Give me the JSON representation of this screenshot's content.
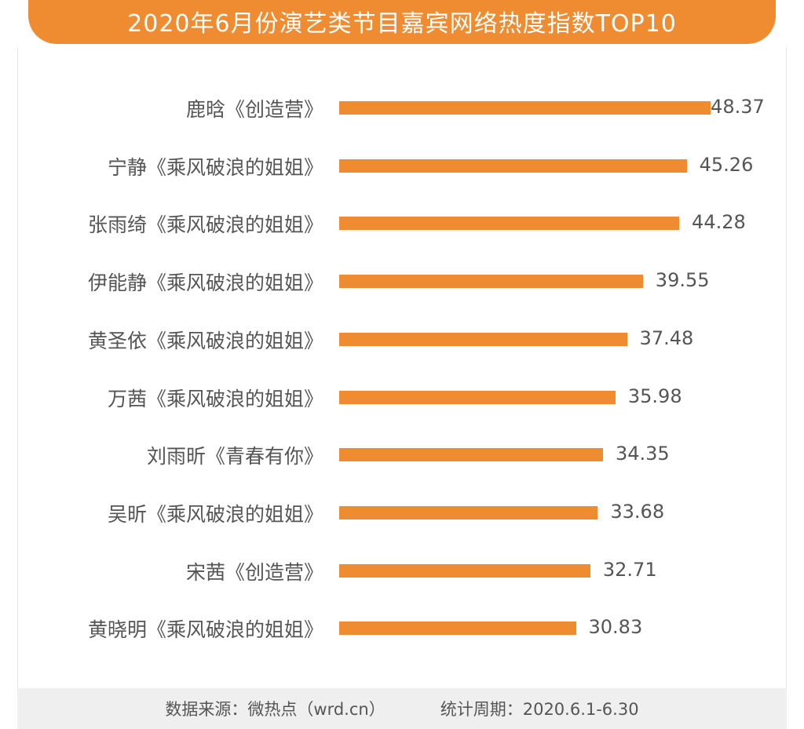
{
  "title": "2020年6月份演艺类节目嘉宾网络热度指数TOP10",
  "colors": {
    "accent": "#ef8c31",
    "text": "#555555",
    "footer_bg": "#efefef"
  },
  "footer": {
    "source": "数据来源：微热点（wrd.cn）",
    "period": "统计周期：2020.6.1-6.30"
  },
  "rows": [
    {
      "label": "鹿晗《创造营》",
      "value": "48.37"
    },
    {
      "label": "宁静《乘风破浪的姐姐》",
      "value": "45.26"
    },
    {
      "label": "张雨绮《乘风破浪的姐姐》",
      "value": "44.28"
    },
    {
      "label": "伊能静《乘风破浪的姐姐》",
      "value": "39.55"
    },
    {
      "label": "黄圣依《乘风破浪的姐姐》",
      "value": "37.48"
    },
    {
      "label": "万茜《乘风破浪的姐姐》",
      "value": "35.98"
    },
    {
      "label": "刘雨昕《青春有你》",
      "value": "34.35"
    },
    {
      "label": "吴昕《乘风破浪的姐姐》",
      "value": "33.68"
    },
    {
      "label": "宋茜《创造营》",
      "value": "32.71"
    },
    {
      "label": "黄晓明《乘风破浪的姐姐》",
      "value": "30.83"
    }
  ],
  "chart_data": {
    "type": "bar",
    "orientation": "horizontal",
    "title": "2020年6月份演艺类节目嘉宾网络热度指数TOP10",
    "categories": [
      "鹿晗《创造营》",
      "宁静《乘风破浪的姐姐》",
      "张雨绮《乘风破浪的姐姐》",
      "伊能静《乘风破浪的姐姐》",
      "黄圣依《乘风破浪的姐姐》",
      "万茜《乘风破浪的姐姐》",
      "刘雨昕《青春有你》",
      "吴昕《乘风破浪的姐姐》",
      "宋茜《创造营》",
      "黄晓明《乘风破浪的姐姐》"
    ],
    "values": [
      48.37,
      45.26,
      44.28,
      39.55,
      37.48,
      35.98,
      34.35,
      33.68,
      32.71,
      30.83
    ],
    "xlabel": "",
    "ylabel": "",
    "grid": false,
    "legend": null,
    "data_labels": true,
    "annotations": [
      "数据来源：微热点（wrd.cn）",
      "统计周期：2020.6.1-6.30"
    ]
  }
}
